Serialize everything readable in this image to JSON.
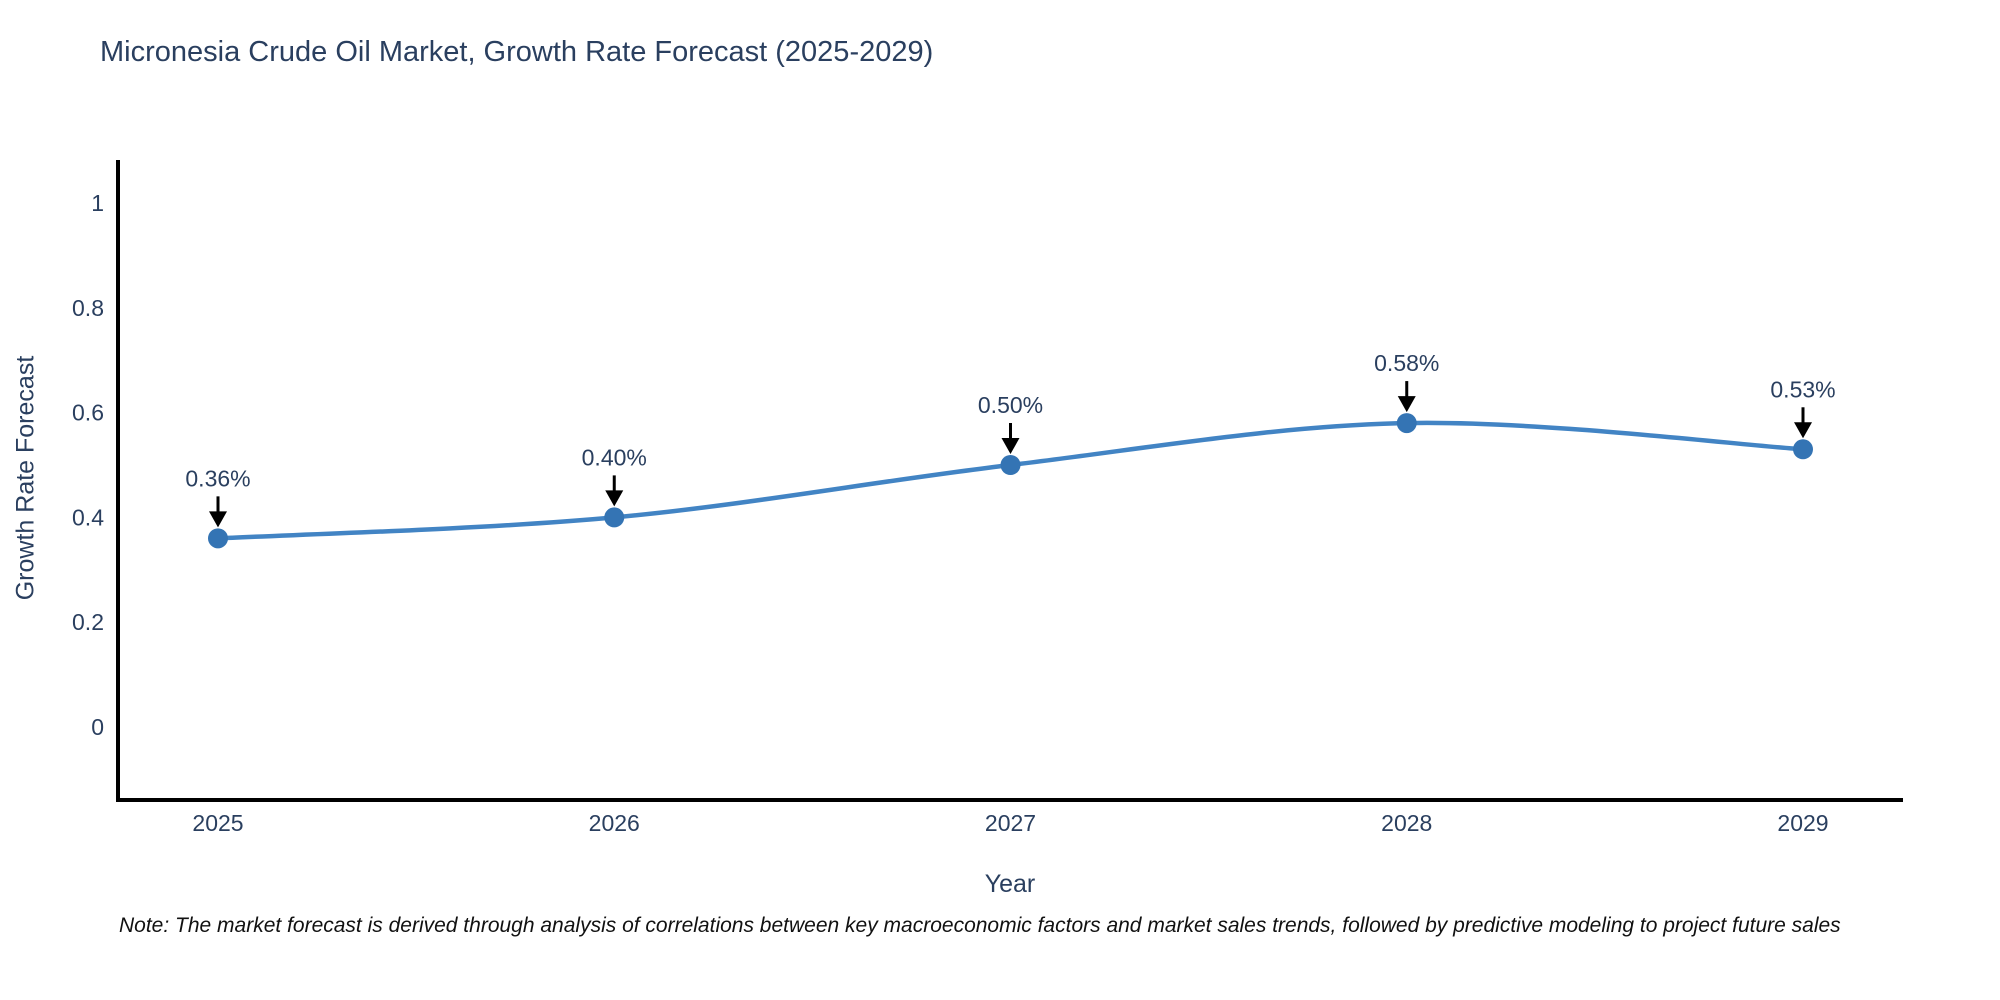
{
  "note": "Note: The market forecast is derived through analysis of correlations between key macroeconomic factors and market sales trends, followed by predictive modeling to project future sales",
  "chart_data": {
    "type": "line",
    "title": "Micronesia Crude Oil Market, Growth Rate Forecast (2025-2029)",
    "xlabel": "Year",
    "ylabel": "Growth Rate Forecast",
    "x": [
      "2025",
      "2026",
      "2027",
      "2028",
      "2029"
    ],
    "values": [
      0.36,
      0.4,
      0.5,
      0.58,
      0.53
    ],
    "point_labels": [
      "0.36%",
      "0.40%",
      "0.50%",
      "0.58%",
      "0.53%"
    ],
    "yticks": [
      0,
      0.2,
      0.4,
      0.6,
      0.8,
      1
    ],
    "ytick_labels": [
      "0",
      "0.2",
      "0.4",
      "0.6",
      "0.8",
      "1"
    ],
    "ylim": [
      -0.14,
      1.08
    ],
    "grid": false,
    "legend": "none",
    "line_shape": "spline",
    "colors": {
      "line": "#4284c4",
      "marker": "#3474b4",
      "axis": "#000000",
      "text": "#2a3f5f",
      "annotation_arrow": "#000000",
      "note_text": "#111111",
      "background": "#ffffff"
    }
  }
}
